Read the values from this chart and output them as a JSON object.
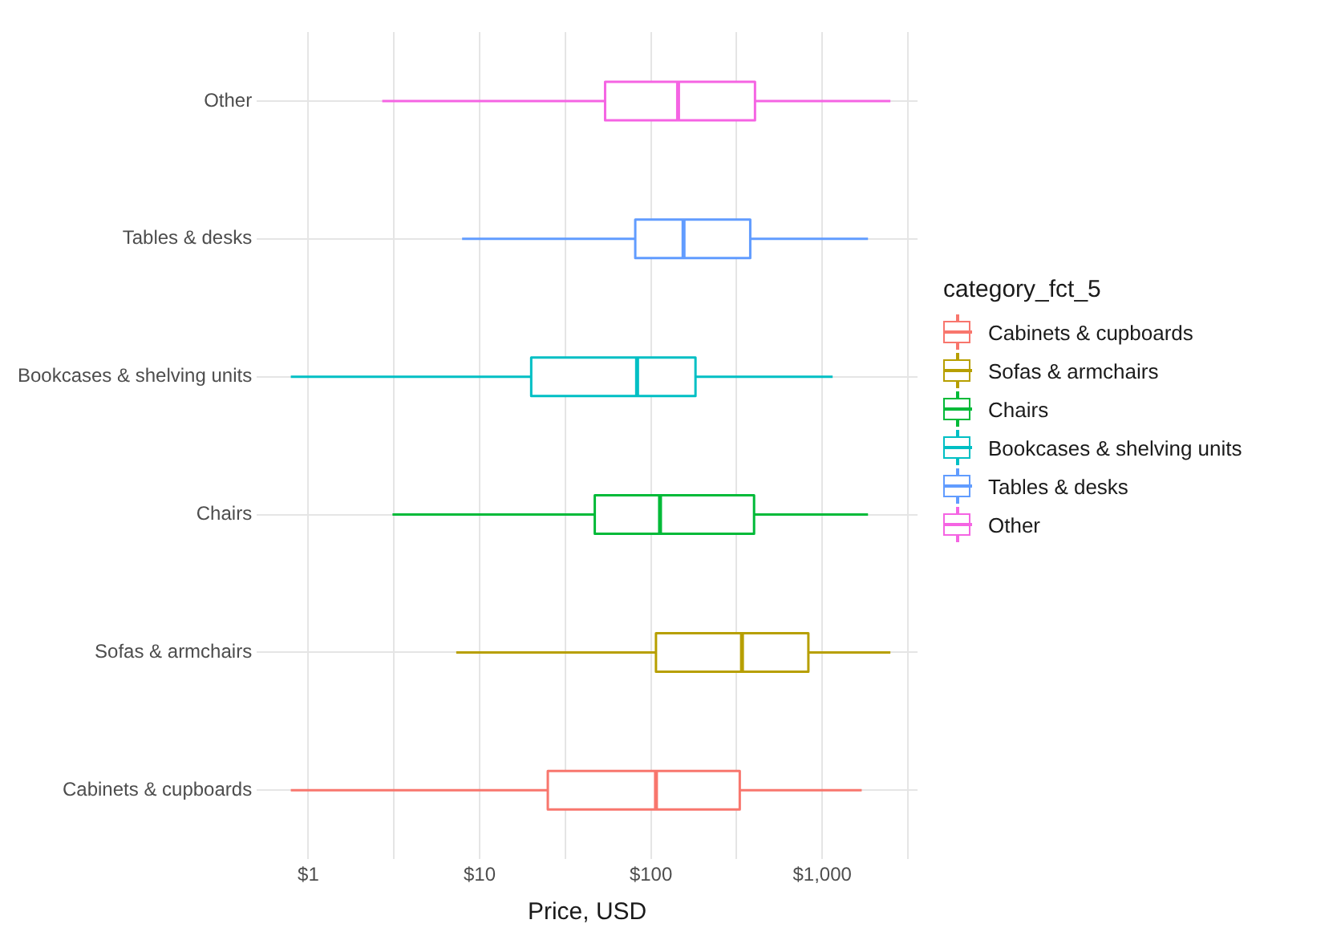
{
  "chart_data": {
    "type": "box",
    "orientation": "horizontal",
    "xlabel": "Price, USD",
    "legend_title": "category_fct_5",
    "legend": "right",
    "grid": true,
    "log": "x",
    "categories": [
      "Other",
      "Tables & desks",
      "Bookcases & shelving units",
      "Chairs",
      "Sofas & armchairs",
      "Cabinets & cupboards"
    ],
    "xlim": [
      0.5,
      3600
    ],
    "xticks": [
      {
        "value": 1,
        "label": "$1"
      },
      {
        "value": 3.16,
        "label": null
      },
      {
        "value": 10,
        "label": "$10"
      },
      {
        "value": 31.6,
        "label": null
      },
      {
        "value": 100,
        "label": "$100"
      },
      {
        "value": 316,
        "label": null
      },
      {
        "value": 1000,
        "label": "$1,000"
      },
      {
        "value": 3160,
        "label": null
      }
    ],
    "series": [
      {
        "name": "Cabinets & cupboards",
        "color": "#f8766d",
        "boxes": [
          null,
          null,
          null,
          null,
          null,
          {
            "low": 0.79,
            "q1": 25,
            "median": 107,
            "q3": 330,
            "high": 1700
          }
        ]
      },
      {
        "name": "Sofas & armchairs",
        "color": "#b79f00",
        "boxes": [
          null,
          null,
          null,
          null,
          {
            "low": 7.3,
            "q1": 107,
            "median": 340,
            "q3": 830,
            "high": 2500
          },
          null
        ]
      },
      {
        "name": "Chairs",
        "color": "#00ba38",
        "boxes": [
          null,
          null,
          null,
          {
            "low": 3.1,
            "q1": 47,
            "median": 113,
            "q3": 400,
            "high": 1850
          },
          null,
          null
        ]
      },
      {
        "name": "Bookcases & shelving units",
        "color": "#00bfc4",
        "boxes": [
          null,
          null,
          {
            "low": 0.79,
            "q1": 20,
            "median": 83,
            "q3": 182,
            "high": 1150
          },
          null,
          null,
          null
        ]
      },
      {
        "name": "Tables & desks",
        "color": "#619cff",
        "boxes": [
          null,
          {
            "low": 7.9,
            "q1": 81,
            "median": 155,
            "q3": 380,
            "high": 1850
          },
          null,
          null,
          null,
          null
        ]
      },
      {
        "name": "Other",
        "color": "#f564e3",
        "boxes": [
          {
            "low": 2.7,
            "q1": 54,
            "median": 144,
            "q3": 405,
            "high": 2500
          },
          null,
          null,
          null,
          null,
          null
        ]
      }
    ]
  }
}
